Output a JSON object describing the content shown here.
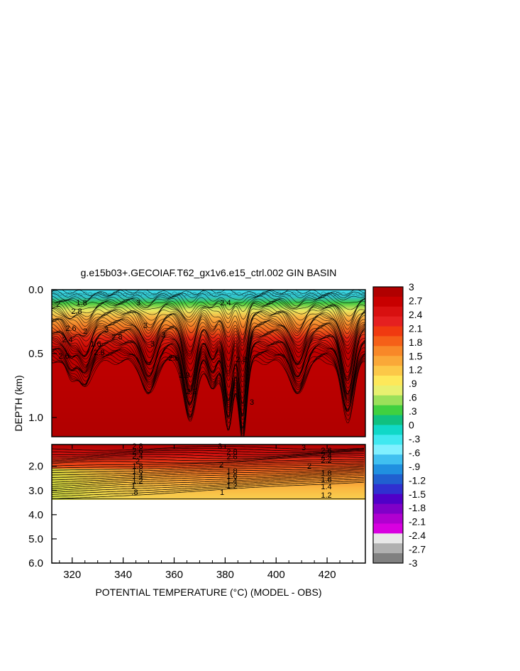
{
  "chart_data": {
    "type": "heatmap",
    "title": "g.e15b03+.GECOIAF.T62_gx1v6.e15_ctrl.002 GIN BASIN",
    "xlabel": "POTENTIAL TEMPERATURE (°C) (MODEL - OBS)",
    "ylabel": "DEPTH (km)",
    "xlim": [
      312,
      435
    ],
    "x_ticks": [
      "320",
      "340",
      "360",
      "380",
      "400",
      "420"
    ],
    "upper_panel": {
      "ylim": [
        0.0,
        1.15
      ],
      "y_ticks": [
        "0.0",
        "0.5",
        "1.0"
      ],
      "contour_labels": [
        "2",
        "2.8",
        "2.6",
        "2.4",
        "2",
        "1.8",
        "1.6",
        "2.6",
        "2.8",
        "3",
        "2.8",
        "3",
        "3",
        "3",
        "3",
        "2.6",
        "2.9",
        "2.2",
        "2.4",
        "2.8",
        "3"
      ]
    },
    "lower_panel": {
      "ylim": [
        1.1,
        6.0
      ],
      "y_ticks": [
        "2.0",
        "3.0",
        "4.0",
        "5.0",
        "6.0"
      ],
      "data_bottom_km": 3.35,
      "contour_labels": [
        "2.8",
        "2.6",
        "2.4",
        "2",
        "1.8",
        "1.6",
        "1.4",
        "1.2",
        "1",
        ".8",
        "3",
        "2.8",
        "2.6",
        "2",
        "1.8",
        "1.6",
        "1.4",
        "1.2",
        "1",
        "3",
        "2.6",
        "2.4",
        "2.2",
        "2",
        "1.8",
        "1.6",
        "1.4",
        "1.2"
      ]
    },
    "colorbar": {
      "labels": [
        "3",
        "2.7",
        "2.4",
        "2.1",
        "1.8",
        "1.5",
        "1.2",
        ".9",
        ".6",
        ".3",
        "0",
        "-.3",
        "-.6",
        "-.9",
        "-1.2",
        "-1.5",
        "-1.8",
        "-2.1",
        "-2.4",
        "-2.7",
        "-3"
      ],
      "min": -3,
      "max": 3,
      "colors": [
        "#b00000",
        "#c80000",
        "#d81010",
        "#e52020",
        "#f03a10",
        "#f56018",
        "#f88828",
        "#faa838",
        "#fcc848",
        "#fee85a",
        "#e8f070",
        "#9be05a",
        "#40d040",
        "#10c080",
        "#10d8c8",
        "#40e8f0",
        "#80f0ff",
        "#40c0f0",
        "#2090e0",
        "#2060d0",
        "#3030d0",
        "#5000c8",
        "#8000c8",
        "#b000d0",
        "#d800e0",
        "#e8e8e8",
        "#b0b0b0",
        "#808080"
      ]
    }
  }
}
